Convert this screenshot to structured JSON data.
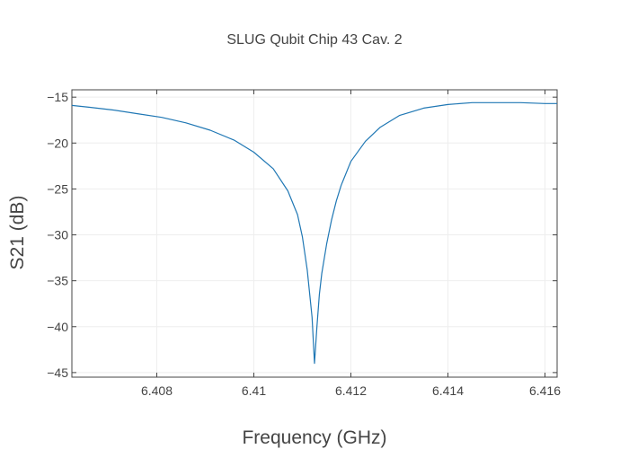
{
  "chart_data": {
    "type": "line",
    "title": "SLUG Qubit Chip 43 Cav. 2",
    "xlabel": "Frequency (GHz)",
    "ylabel": "S21 (dB)",
    "xlim": [
      6.40625,
      6.41625
    ],
    "ylim": [
      -45.5,
      -14.2
    ],
    "x_ticks": [
      6.408,
      6.41,
      6.412,
      6.414,
      6.416
    ],
    "x_tick_labels": [
      "6.408",
      "6.41",
      "6.412",
      "6.414",
      "6.416"
    ],
    "y_ticks": [
      -15,
      -20,
      -25,
      -30,
      -35,
      -40,
      -45
    ],
    "y_tick_labels": [
      "−15",
      "−20",
      "−25",
      "−30",
      "−35",
      "−40",
      "−45"
    ],
    "grid": true,
    "legend": "none",
    "series": [
      {
        "color": "#1f77b4",
        "x": [
          6.40625,
          6.4066,
          6.4071,
          6.4076,
          6.4081,
          6.4086,
          6.4091,
          6.4096,
          6.41,
          6.4104,
          6.4107,
          6.4109,
          6.411,
          6.4111,
          6.4112,
          6.41125,
          6.4113,
          6.41135,
          6.4114,
          6.4115,
          6.4116,
          6.4117,
          6.4118,
          6.412,
          6.4123,
          6.4126,
          6.413,
          6.4135,
          6.414,
          6.4145,
          6.415,
          6.4155,
          6.416,
          6.41625
        ],
        "y": [
          -15.9,
          -16.1,
          -16.4,
          -16.8,
          -17.2,
          -17.8,
          -18.6,
          -19.7,
          -21.0,
          -22.8,
          -25.2,
          -27.8,
          -30.2,
          -33.8,
          -39.0,
          -44.0,
          -40.0,
          -36.5,
          -34.2,
          -31.0,
          -28.4,
          -26.3,
          -24.6,
          -22.0,
          -19.8,
          -18.3,
          -17.0,
          -16.2,
          -15.8,
          -15.6,
          -15.6,
          -15.6,
          -15.7,
          -15.7
        ]
      }
    ]
  }
}
